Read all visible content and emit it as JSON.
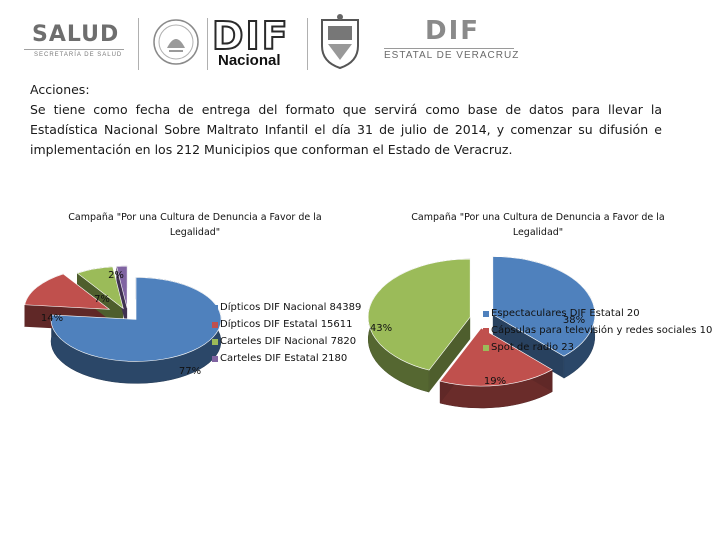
{
  "logos": {
    "salud": {
      "name": "SALUD",
      "subtitle": "SECRETARÍA DE SALUD"
    },
    "dif_nacional": {
      "name": "DIF",
      "subtitle": "Nacional"
    },
    "dif_veracruz": {
      "name": "DIF",
      "subtitle": "ESTATAL DE VERACRUZ"
    }
  },
  "text": {
    "heading": "Acciones:",
    "body": "Se tiene como fecha de entrega del formato que servirá como base de datos para llevar la Estadística Nacional Sobre Maltrato Infantil el día 31 de julio de 2014, y comenzar su difusión e implementación en los 212 Municipios que conforman el Estado de Veracruz."
  },
  "chart_data": [
    {
      "type": "pie",
      "title": "Campaña \"Por una Cultura de Denuncia a Favor de la Legalidad\"",
      "categories": [
        "Dípticos DIF Nacional",
        "Dípticos DIF Estatal",
        "Carteles DIF Nacional",
        "Carteles DIF Estatal"
      ],
      "values": [
        84389,
        15611,
        7820,
        2180
      ],
      "percent_labels": [
        "77%",
        "14%",
        "7%",
        "2%"
      ],
      "legend_labels": [
        "Dípticos DIF Nacional 84389",
        "Dípticos DIF Estatal 15611",
        "Carteles DIF Nacional 7820",
        "Carteles DIF Estatal 2180"
      ],
      "colors": [
        "#4f81bd",
        "#c0504d",
        "#9bbb59",
        "#8064a2"
      ],
      "legend": "right"
    },
    {
      "type": "pie",
      "title": "Campaña \"Por una Cultura de Denuncia a Favor de la Legalidad\"",
      "categories": [
        "Espectaculares DIF Estatal",
        "Cápsulas para televisión y redes sociales",
        "Spot de radio"
      ],
      "values": [
        20,
        10,
        23
      ],
      "percent_labels": [
        "38%",
        "19%",
        "43%"
      ],
      "legend_labels": [
        "Espectaculares DIF Estatal 20",
        "Cápsulas para televisión y redes sociales 10",
        "Spot de radio 23"
      ],
      "colors": [
        "#4f81bd",
        "#c0504d",
        "#9bbb59"
      ],
      "legend": "right"
    }
  ]
}
